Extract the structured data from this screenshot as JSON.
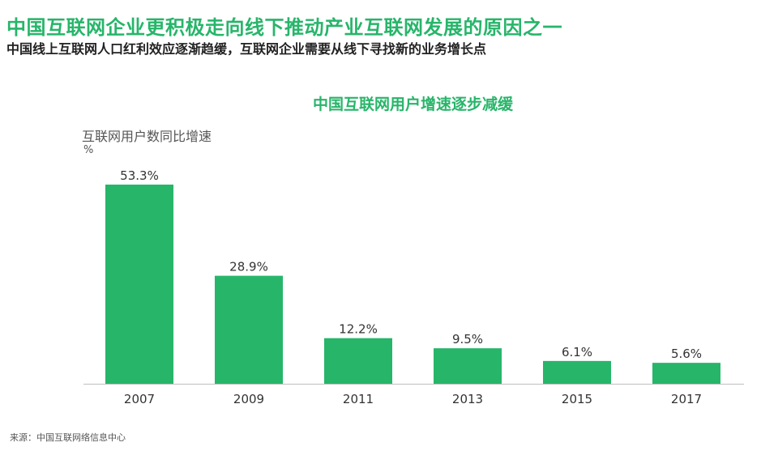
{
  "header": {
    "title": "中国互联网企业更积极走向线下推动产业互联网发展的原因之一",
    "subtitle": "中国线上互联网人口红利效应逐渐趋缓，互联网企业需要从线下寻找新的业务增长点"
  },
  "source": "来源：中国互联网络信息中心",
  "chart_data": {
    "type": "bar",
    "title": "中国互联网用户增速逐步减缓",
    "ylabel": "互联网用户数同比增速",
    "yunit": "%",
    "xlabel": "",
    "categories": [
      "2007",
      "2009",
      "2011",
      "2013",
      "2015",
      "2017"
    ],
    "values": [
      53.3,
      28.9,
      12.2,
      9.5,
      6.1,
      5.6
    ],
    "data_labels": [
      "53.3%",
      "28.9%",
      "12.2%",
      "9.5%",
      "6.1%",
      "5.6%"
    ],
    "ylim": [
      0,
      53.3
    ],
    "grid": false,
    "bar_color": "#27b56a"
  }
}
